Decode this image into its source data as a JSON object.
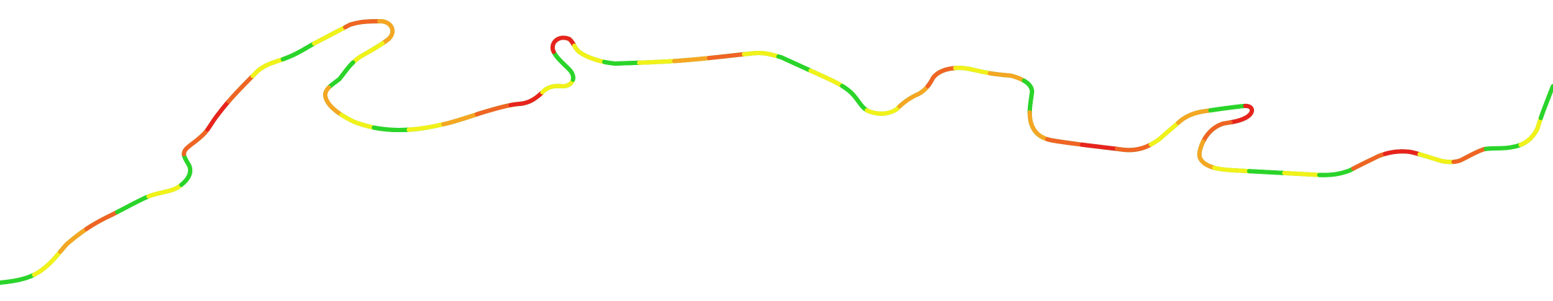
{
  "map": {
    "layer": "traffic-speed-route",
    "legend_colors": {
      "free_flow": "#2ad42a",
      "moderate": "#f2f21a",
      "slow": "#f5a623",
      "heavy": "#f06424",
      "stopped": "#e8231e"
    },
    "segment_sequence": [
      "free_flow",
      "moderate",
      "slow",
      "heavy",
      "free_flow",
      "moderate",
      "free_flow",
      "heavy",
      "stopped",
      "heavy",
      "moderate",
      "free_flow",
      "moderate",
      "heavy",
      "slow",
      "moderate",
      "free_flow",
      "slow",
      "moderate",
      "free_flow",
      "moderate",
      "slow",
      "heavy",
      "stopped",
      "moderate",
      "free_flow",
      "stopped",
      "moderate",
      "free_flow",
      "moderate",
      "slow",
      "heavy",
      "moderate",
      "free_flow",
      "moderate",
      "free_flow",
      "moderate",
      "slow",
      "heavy",
      "moderate",
      "slow",
      "free_flow",
      "slow",
      "heavy",
      "stopped",
      "heavy",
      "moderate",
      "slow",
      "free_flow",
      "stopped",
      "heavy",
      "slow",
      "moderate",
      "free_flow",
      "moderate",
      "free_flow",
      "heavy",
      "stopped",
      "moderate",
      "heavy",
      "free_flow",
      "moderate",
      "free_flow"
    ]
  }
}
